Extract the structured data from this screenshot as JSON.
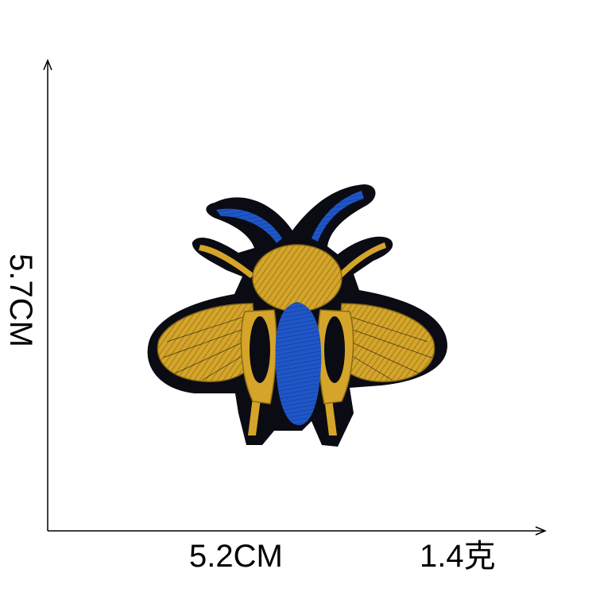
{
  "dimensions": {
    "height_label": "5.7CM",
    "width_label": "5.2CM",
    "weight_label": "1.4克"
  },
  "patch": {
    "subject": "bee-embroidered-patch",
    "colors": {
      "border": "#0b0b14",
      "gold": "#d4a52a",
      "gold_dark": "#8a6a14",
      "blue": "#1f56c8",
      "blue_dark": "#123a8e",
      "axis": "#000000"
    }
  }
}
